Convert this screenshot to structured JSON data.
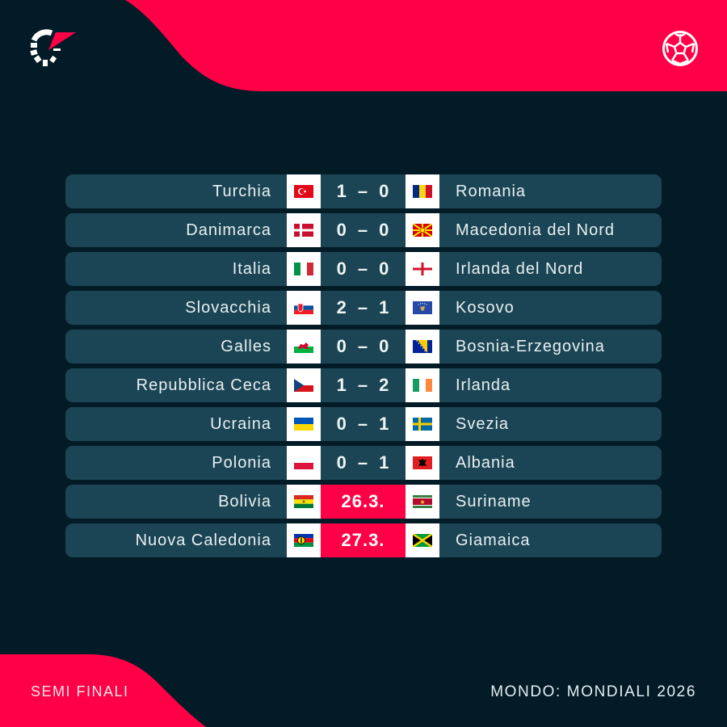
{
  "header": {
    "logo_icon": "flashscore-logo-icon",
    "sport_icon": "football-icon"
  },
  "colors": {
    "background": "#031b26",
    "accent": "#ff0046",
    "row": "#1b4554",
    "flag_cell": "#ffffff"
  },
  "matches": [
    {
      "home": "Turchia",
      "home_flag": "turkey",
      "home_score": "1",
      "away_score": "0",
      "date": null,
      "away": "Romania",
      "away_flag": "romania"
    },
    {
      "home": "Danimarca",
      "home_flag": "denmark",
      "home_score": "0",
      "away_score": "0",
      "date": null,
      "away": "Macedonia del Nord",
      "away_flag": "north-macedonia"
    },
    {
      "home": "Italia",
      "home_flag": "italy",
      "home_score": "0",
      "away_score": "0",
      "date": null,
      "away": "Irlanda del Nord",
      "away_flag": "northern-ireland"
    },
    {
      "home": "Slovacchia",
      "home_flag": "slovakia",
      "home_score": "2",
      "away_score": "1",
      "date": null,
      "away": "Kosovo",
      "away_flag": "kosovo"
    },
    {
      "home": "Galles",
      "home_flag": "wales",
      "home_score": "0",
      "away_score": "0",
      "date": null,
      "away": "Bosnia-Erzegovina",
      "away_flag": "bosnia"
    },
    {
      "home": "Repubblica Ceca",
      "home_flag": "czechia",
      "home_score": "1",
      "away_score": "2",
      "date": null,
      "away": "Irlanda",
      "away_flag": "ireland"
    },
    {
      "home": "Ucraina",
      "home_flag": "ukraine",
      "home_score": "0",
      "away_score": "1",
      "date": null,
      "away": "Svezia",
      "away_flag": "sweden"
    },
    {
      "home": "Polonia",
      "home_flag": "poland",
      "home_score": "0",
      "away_score": "1",
      "date": null,
      "away": "Albania",
      "away_flag": "albania"
    },
    {
      "home": "Bolivia",
      "home_flag": "bolivia",
      "home_score": null,
      "away_score": null,
      "date": "26.3.",
      "away": "Suriname",
      "away_flag": "suriname"
    },
    {
      "home": "Nuova Caledonia",
      "home_flag": "new-caledonia",
      "home_score": null,
      "away_score": null,
      "date": "27.3.",
      "away": "Giamaica",
      "away_flag": "jamaica"
    }
  ],
  "score_separator": "–",
  "footer": {
    "round": "SEMI FINALI",
    "competition": "MONDO: MONDIALI 2026"
  }
}
